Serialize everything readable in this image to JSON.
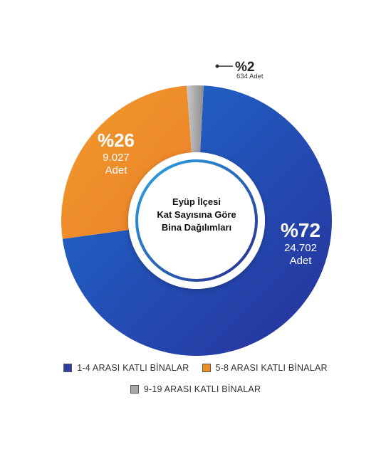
{
  "chart_data": {
    "type": "pie",
    "center_title": [
      "Eyüp İlçesi",
      "Kat Sayısına Göre",
      "Bina Dağılımları"
    ],
    "slices": [
      {
        "name": "1-4 ARASI KATLI BİNALAR",
        "percent": 72,
        "percent_label": "%72",
        "count_label": "24.702",
        "unit": "Adet",
        "color": "#2f4fb0"
      },
      {
        "name": "5-8 ARASI KATLI BİNALAR",
        "percent": 26,
        "percent_label": "%26",
        "count_label": "9.027",
        "unit": "Adet",
        "color": "#ef8e23"
      },
      {
        "name": "9-19 ARASI KATLI BİNALAR",
        "percent": 2,
        "percent_label": "%2",
        "count_label": "634",
        "unit": "Adet",
        "color": "#9a9a9a"
      }
    ],
    "legend_placement": "bottom"
  }
}
